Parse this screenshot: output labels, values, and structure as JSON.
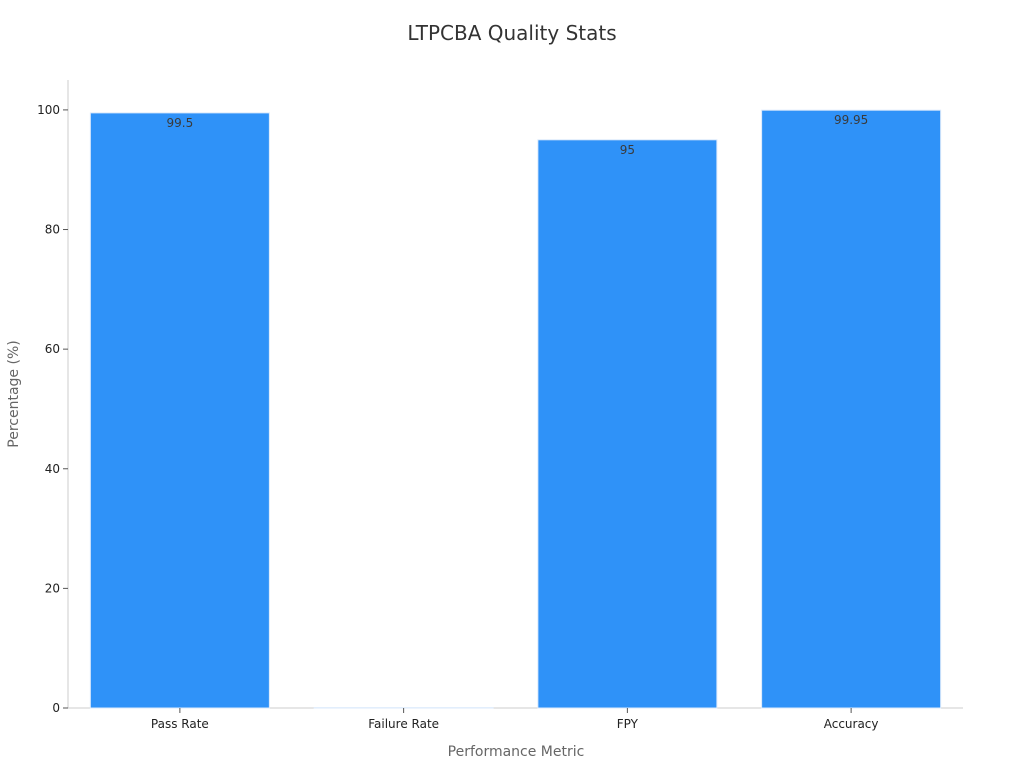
{
  "chart_data": {
    "type": "bar",
    "title": "LTPCBA Quality Stats",
    "xlabel": "Performance Metric",
    "ylabel": "Percentage (%)",
    "categories": [
      "Pass Rate",
      "Failure Rate",
      "FPY",
      "Accuracy"
    ],
    "values": [
      99.5,
      0.05,
      95,
      99.95
    ],
    "data_labels": [
      "99.5",
      "",
      "95",
      "99.95"
    ],
    "ylim": [
      0,
      105
    ],
    "yticks": [
      0,
      20,
      40,
      60,
      80,
      100
    ],
    "grid": false,
    "legend": "none",
    "bar_color": "#2f92f8"
  }
}
